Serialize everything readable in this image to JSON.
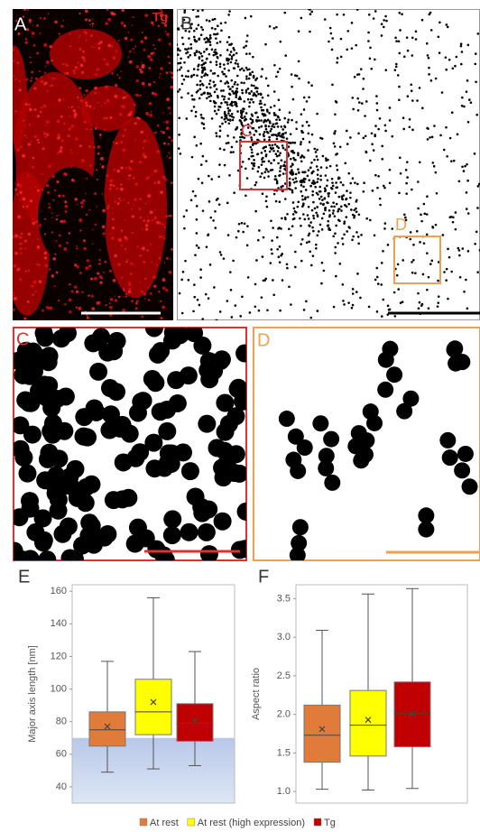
{
  "panel_labels": [
    "A",
    "B",
    "C",
    "D",
    "E",
    "F"
  ],
  "stain_label": "Tg",
  "legend": {
    "items": [
      {
        "name": "At rest",
        "color": "#e07b39"
      },
      {
        "name": "At rest (high expression)",
        "color": "#ffff00"
      },
      {
        "name": "Tg",
        "color": "#c00000"
      }
    ]
  },
  "chart_data": [
    {
      "type": "box",
      "y_label": "Major axis length [nm]",
      "ylim": [
        30,
        164
      ],
      "yticks": [
        40,
        60,
        80,
        100,
        120,
        140,
        160
      ],
      "shade_max": 70,
      "series": [
        {
          "whisker_low": 49,
          "q1": 65,
          "median": 75,
          "q3": 86,
          "whisker_high": 117,
          "mean": 77
        },
        {
          "whisker_low": 51,
          "q1": 72,
          "median": 86,
          "q3": 106,
          "whisker_high": 156,
          "mean": 92
        },
        {
          "whisker_low": 53,
          "q1": 68,
          "median": 79,
          "q3": 91,
          "whisker_high": 123,
          "mean": 81
        }
      ]
    },
    {
      "type": "box",
      "y_label": "Aspect ratio",
      "ylim": [
        0.85,
        3.68
      ],
      "yticks": [
        {
          "value": 1,
          "label": "1.0"
        },
        {
          "value": 1.5,
          "label": "1.5"
        },
        {
          "value": 2,
          "label": "2.0"
        },
        {
          "value": 2.5,
          "label": "2.5"
        },
        {
          "value": 3,
          "label": "3.0"
        },
        {
          "value": 3.5,
          "label": "3.5"
        }
      ],
      "series": [
        {
          "whisker_low": 1.03,
          "q1": 1.38,
          "median": 1.73,
          "q3": 2.12,
          "whisker_high": 3.09,
          "mean": 1.81
        },
        {
          "whisker_low": 1.02,
          "q1": 1.46,
          "median": 1.86,
          "q3": 2.31,
          "whisker_high": 3.56,
          "mean": 1.93
        },
        {
          "whisker_low": 1.04,
          "q1": 1.58,
          "median": 2.01,
          "q3": 2.42,
          "whisker_high": 3.63,
          "mean": 2.01
        }
      ]
    }
  ]
}
